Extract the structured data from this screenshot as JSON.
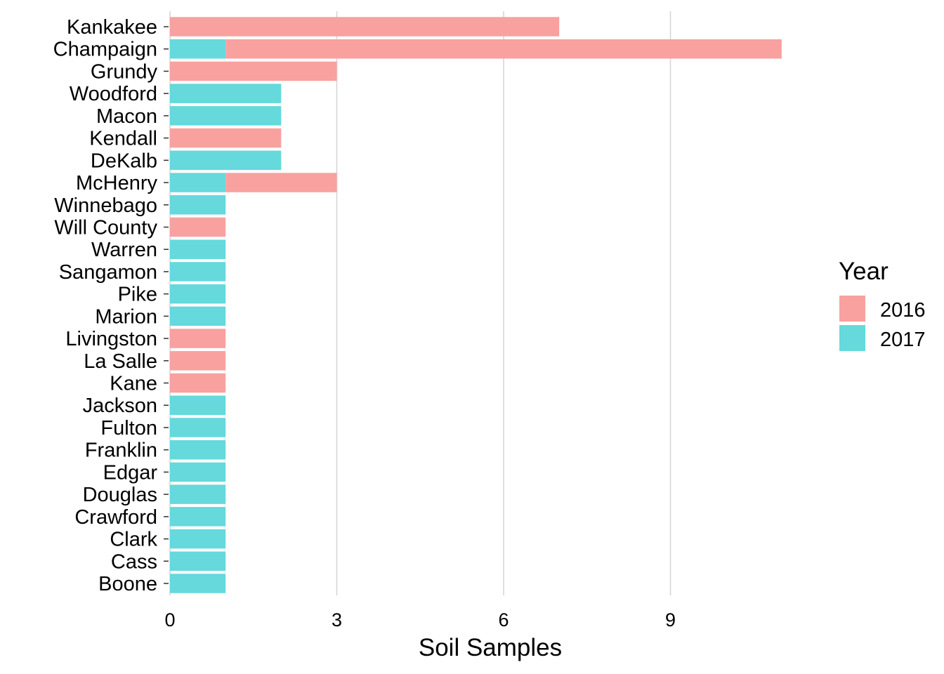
{
  "chart_data": {
    "type": "bar",
    "orientation": "horizontal",
    "stacked": true,
    "title": "",
    "xlabel": "Soil Samples",
    "ylabel": "",
    "xlim": [
      0,
      11.4
    ],
    "xticks": [
      0,
      3,
      6,
      9
    ],
    "grid": "vertical major only",
    "categories": [
      "Kankakee",
      "Champaign",
      "Grundy",
      "Woodford",
      "Macon",
      "Kendall",
      "DeKalb",
      "McHenry",
      "Winnebago",
      "Will County",
      "Warren",
      "Sangamon",
      "Pike",
      "Marion",
      "Livingston",
      "La Salle",
      "Kane",
      "Jackson",
      "Fulton",
      "Franklin",
      "Edgar",
      "Douglas",
      "Crawford",
      "Clark",
      "Cass",
      "Boone"
    ],
    "series": [
      {
        "name": "2016",
        "color": "#F8A19F",
        "values": [
          7,
          10,
          3,
          0,
          0,
          2,
          0,
          2,
          0,
          1,
          0,
          0,
          0,
          0,
          1,
          1,
          1,
          0,
          0,
          0,
          0,
          0,
          0,
          0,
          0,
          0
        ]
      },
      {
        "name": "2017",
        "color": "#65D9DC",
        "values": [
          0,
          1,
          0,
          2,
          2,
          0,
          2,
          1,
          1,
          0,
          1,
          1,
          1,
          1,
          0,
          0,
          0,
          1,
          1,
          1,
          1,
          1,
          1,
          1,
          1,
          1
        ]
      }
    ],
    "legend": {
      "title": "Year",
      "placement": "right"
    }
  }
}
